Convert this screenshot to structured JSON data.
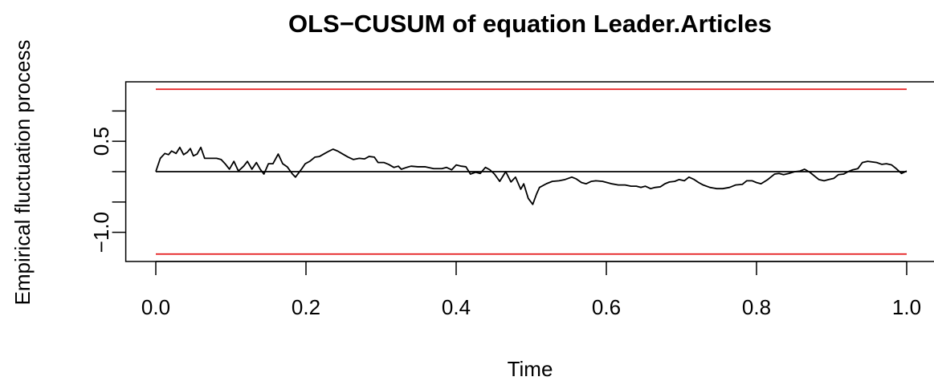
{
  "chart_data": {
    "type": "line",
    "title": "OLS−CUSUM of equation Leader.Articles",
    "x_label": "Time",
    "y_label": "Empirical fluctuation process",
    "xlim": [
      -0.04,
      1.04
    ],
    "ylim": [
      -1.48,
      1.48
    ],
    "xticks": [
      {
        "value": 0,
        "label": "0.0"
      },
      0.2,
      0.4,
      0.6,
      0.8,
      {
        "value": 1,
        "label": "1.0"
      }
    ],
    "yticks": [
      {
        "value": -1,
        "label": "−1.0"
      },
      {
        "value": -0.5,
        "label": null
      },
      {
        "value": 0,
        "label": null
      },
      0.5,
      {
        "value": 1,
        "label": null
      }
    ],
    "hlines": [
      {
        "value": 1.358,
        "color": "#e41a1c"
      },
      {
        "value": -1.358,
        "color": "#e41a1c"
      },
      {
        "value": 0,
        "color": "#000000"
      }
    ],
    "series": [
      {
        "color": "#000000",
        "x": [
          0,
          0.006,
          0.012,
          0.017,
          0.021,
          0.027,
          0.032,
          0.037,
          0.042,
          0.046,
          0.05,
          0.055,
          0.06,
          0.065,
          0.073,
          0.081,
          0.087,
          0.093,
          0.098,
          0.104,
          0.11,
          0.117,
          0.122,
          0.128,
          0.134,
          0.139,
          0.144,
          0.15,
          0.156,
          0.163,
          0.169,
          0.175,
          0.182,
          0.186,
          0.194,
          0.199,
          0.205,
          0.212,
          0.218,
          0.225,
          0.231,
          0.236,
          0.242,
          0.249,
          0.256,
          0.263,
          0.271,
          0.278,
          0.284,
          0.291,
          0.296,
          0.304,
          0.31,
          0.317,
          0.323,
          0.327,
          0.334,
          0.34,
          0.349,
          0.359,
          0.37,
          0.381,
          0.387,
          0.394,
          0.4,
          0.407,
          0.413,
          0.419,
          0.426,
          0.432,
          0.439,
          0.445,
          0.451,
          0.458,
          0.466,
          0.473,
          0.479,
          0.486,
          0.49,
          0.496,
          0.502,
          0.507,
          0.511,
          0.52,
          0.528,
          0.537,
          0.545,
          0.554,
          0.56,
          0.567,
          0.573,
          0.58,
          0.586,
          0.595,
          0.601,
          0.607,
          0.616,
          0.625,
          0.633,
          0.64,
          0.646,
          0.652,
          0.659,
          0.665,
          0.672,
          0.678,
          0.684,
          0.691,
          0.697,
          0.704,
          0.71,
          0.717,
          0.723,
          0.729,
          0.738,
          0.747,
          0.755,
          0.764,
          0.772,
          0.781,
          0.787,
          0.794,
          0.8,
          0.806,
          0.815,
          0.824,
          0.83,
          0.836,
          0.843,
          0.851,
          0.858,
          0.864,
          0.871,
          0.877,
          0.883,
          0.89,
          0.896,
          0.903,
          0.909,
          0.916,
          0.922,
          0.928,
          0.935,
          0.941,
          0.948,
          0.954,
          0.96,
          0.967,
          0.973,
          0.98,
          0.986,
          0.993,
          1
        ],
        "values": [
          0,
          0.22,
          0.3,
          0.28,
          0.34,
          0.3,
          0.4,
          0.28,
          0.32,
          0.38,
          0.26,
          0.29,
          0.4,
          0.22,
          0.22,
          0.22,
          0.2,
          0.12,
          0.04,
          0.17,
          0.01,
          0.09,
          0.17,
          0.04,
          0.15,
          0.04,
          -0.04,
          0.13,
          0.13,
          0.29,
          0.13,
          0.08,
          -0.04,
          -0.09,
          0.04,
          0.13,
          0.17,
          0.24,
          0.25,
          0.3,
          0.34,
          0.37,
          0.34,
          0.29,
          0.24,
          0.2,
          0.22,
          0.21,
          0.25,
          0.24,
          0.15,
          0.15,
          0.12,
          0.07,
          0.09,
          0.04,
          0.07,
          0.09,
          0.08,
          0.08,
          0.05,
          0.05,
          0.07,
          0.03,
          0.11,
          0.09,
          0.08,
          -0.04,
          -0.01,
          -0.03,
          0.07,
          0.03,
          -0.04,
          -0.16,
          0,
          -0.17,
          -0.09,
          -0.29,
          -0.2,
          -0.44,
          -0.54,
          -0.37,
          -0.26,
          -0.2,
          -0.16,
          -0.15,
          -0.13,
          -0.09,
          -0.12,
          -0.18,
          -0.2,
          -0.16,
          -0.15,
          -0.16,
          -0.18,
          -0.2,
          -0.22,
          -0.22,
          -0.24,
          -0.24,
          -0.26,
          -0.24,
          -0.28,
          -0.26,
          -0.25,
          -0.2,
          -0.17,
          -0.16,
          -0.13,
          -0.15,
          -0.09,
          -0.13,
          -0.18,
          -0.22,
          -0.26,
          -0.28,
          -0.28,
          -0.26,
          -0.22,
          -0.21,
          -0.15,
          -0.15,
          -0.18,
          -0.2,
          -0.13,
          -0.04,
          -0.03,
          -0.05,
          -0.03,
          0,
          0.01,
          0.04,
          -0.01,
          -0.07,
          -0.13,
          -0.15,
          -0.13,
          -0.11,
          -0.05,
          -0.04,
          0,
          0.03,
          0.05,
          0.15,
          0.17,
          0.16,
          0.15,
          0.12,
          0.13,
          0.11,
          0.05,
          -0.03,
          0.01
        ]
      }
    ]
  }
}
